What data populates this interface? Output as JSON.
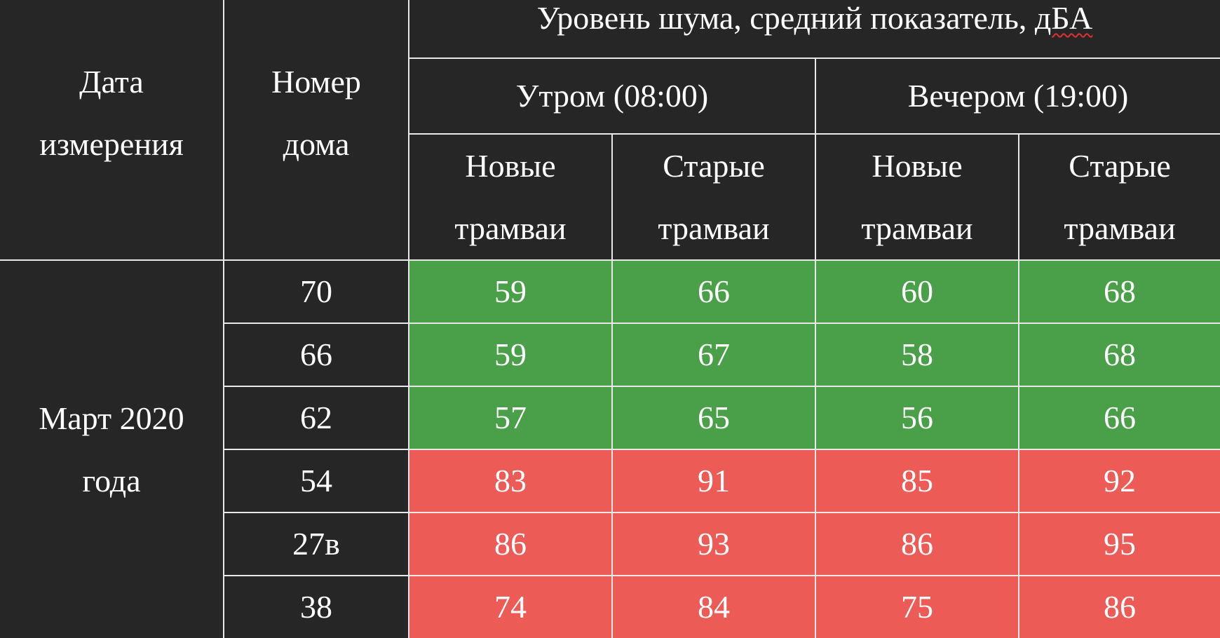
{
  "table": {
    "headers": {
      "date_col": [
        "Дата",
        "измерения"
      ],
      "house_col": [
        "Номер",
        "дома"
      ],
      "noise_title": {
        "before": "Уровень шума, средний показатель, ",
        "unit": "дБА"
      },
      "periods": [
        "Утром (08:00)",
        "Вечером (19:00)"
      ],
      "subcols": [
        [
          "Новые",
          "трамваи"
        ],
        [
          "Старые",
          "трамваи"
        ],
        [
          "Новые",
          "трамваи"
        ],
        [
          "Старые",
          "трамваи"
        ]
      ]
    },
    "date_value": [
      "Март 2020",
      "года"
    ],
    "status_colors": {
      "normal": "#4aa048",
      "exceeded": "#ec5b55",
      "header_background": "#262626"
    },
    "rows": [
      {
        "house": "70",
        "values": [
          "59",
          "66",
          "60",
          "68"
        ],
        "status": "normal"
      },
      {
        "house": "66",
        "values": [
          "59",
          "67",
          "58",
          "68"
        ],
        "status": "normal"
      },
      {
        "house": "62",
        "values": [
          "57",
          "65",
          "56",
          "66"
        ],
        "status": "normal"
      },
      {
        "house": "54",
        "values": [
          "83",
          "91",
          "85",
          "92"
        ],
        "status": "exceeded"
      },
      {
        "house": "27в",
        "values": [
          "86",
          "93",
          "86",
          "95"
        ],
        "status": "exceeded"
      },
      {
        "house": "38",
        "values": [
          "74",
          "84",
          "75",
          "86"
        ],
        "status": "exceeded"
      }
    ]
  }
}
